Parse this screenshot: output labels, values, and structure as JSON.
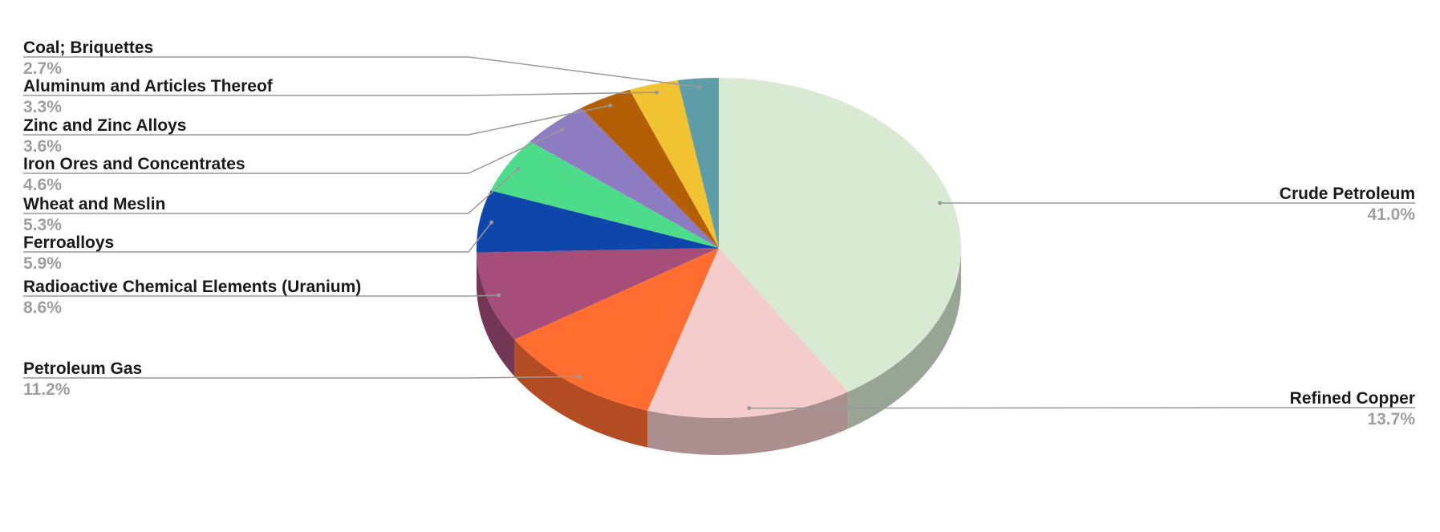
{
  "chart_data": {
    "type": "pie",
    "style": "3d",
    "start": "top, clockwise",
    "slices": [
      {
        "label": "Crude Petroleum",
        "value": 41.0,
        "pct_label": "41.0%",
        "color": "#d9ead3",
        "side": "right"
      },
      {
        "label": "Refined Copper",
        "value": 13.7,
        "pct_label": "13.7%",
        "color": "#f4cccc",
        "side": "right"
      },
      {
        "label": "Petroleum Gas",
        "value": 11.2,
        "pct_label": "11.2%",
        "color": "#ff6d31",
        "side": "left"
      },
      {
        "label": "Radioactive Chemical Elements (Uranium)",
        "value": 8.6,
        "pct_label": "8.6%",
        "color": "#a64d79",
        "side": "left"
      },
      {
        "label": "Ferroalloys",
        "value": 5.9,
        "pct_label": "5.9%",
        "color": "#0f46ab",
        "side": "left"
      },
      {
        "label": "Wheat and Meslin",
        "value": 5.3,
        "pct_label": "5.3%",
        "color": "#4ddd8a",
        "side": "left"
      },
      {
        "label": "Iron Ores and Concentrates",
        "value": 4.6,
        "pct_label": "4.6%",
        "color": "#8e7cc3",
        "side": "left"
      },
      {
        "label": "Zinc and Zinc Alloys",
        "value": 3.6,
        "pct_label": "3.6%",
        "color": "#b45f06",
        "side": "left"
      },
      {
        "label": "Aluminum and Articles Thereof",
        "value": 3.3,
        "pct_label": "3.3%",
        "color": "#f1c232",
        "side": "left"
      },
      {
        "label": "Coal; Briquettes",
        "value": 2.7,
        "pct_label": "2.7%",
        "color": "#5f9ea8",
        "side": "left"
      }
    ]
  }
}
